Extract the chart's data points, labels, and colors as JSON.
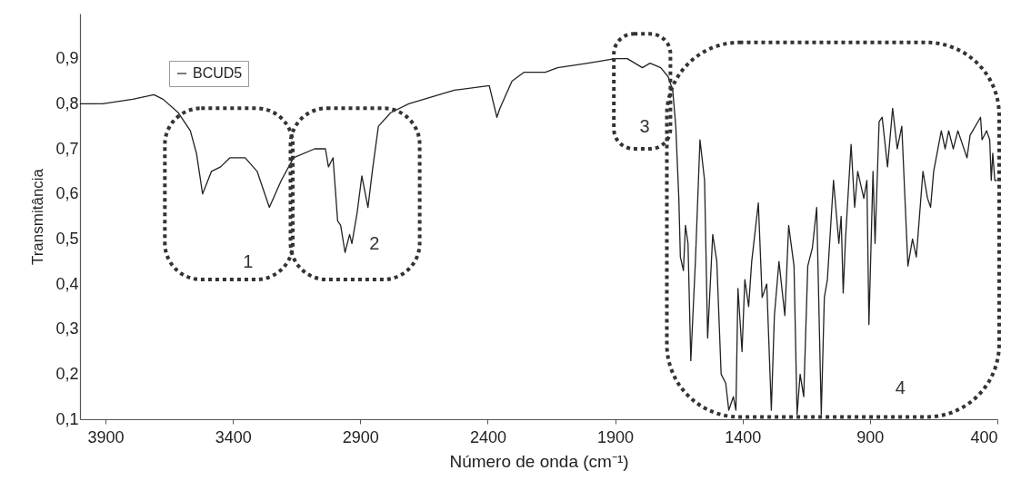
{
  "chart_data": {
    "type": "line",
    "xlabel": "Número de onda (cm⁻¹)",
    "ylabel": "Transmitância",
    "legend": "top left",
    "xlim": [
      4000,
      400
    ],
    "xticks": [
      3900,
      3400,
      2900,
      2400,
      1900,
      1400,
      900,
      400
    ],
    "ylim": [
      0.1,
      1.0
    ],
    "yticks": [
      {
        "value": 0.1,
        "label": "0,1"
      },
      {
        "value": 0.2,
        "label": "0,2"
      },
      {
        "value": 0.3,
        "label": "0,3"
      },
      {
        "value": 0.4,
        "label": "0,4"
      },
      {
        "value": 0.5,
        "label": "0,5"
      },
      {
        "value": 0.6,
        "label": "0,6"
      },
      {
        "value": 0.7,
        "label": "0,7"
      },
      {
        "value": 0.8,
        "label": "0,8"
      },
      {
        "value": 0.9,
        "label": "0,9"
      }
    ],
    "grid": false,
    "marker": "none",
    "line_style": "solid",
    "series": [
      {
        "name": "BCUD5",
        "color": "#222222",
        "x": [
          4000,
          3912,
          3793,
          3710,
          3674,
          3614,
          3567,
          3543,
          3519,
          3484,
          3448,
          3412,
          3352,
          3305,
          3257,
          3210,
          3162,
          3079,
          3037,
          3025,
          3007,
          2989,
          2977,
          2960,
          2942,
          2933,
          2912,
          2894,
          2870,
          2853,
          2829,
          2781,
          2710,
          2531,
          2394,
          2364,
          2352,
          2305,
          2257,
          2174,
          2126,
          2007,
          1900,
          1852,
          1793,
          1763,
          1721,
          1692,
          1674,
          1662,
          1650,
          1644,
          1632,
          1624,
          1614,
          1603,
          1585,
          1567,
          1549,
          1537,
          1517,
          1501,
          1484,
          1466,
          1454,
          1436,
          1426,
          1418,
          1402,
          1391,
          1376,
          1364,
          1338,
          1323,
          1305,
          1287,
          1275,
          1257,
          1234,
          1219,
          1198,
          1186,
          1174,
          1160,
          1144,
          1126,
          1109,
          1091,
          1079,
          1067,
          1043,
          1022,
          1013,
          1005,
          996,
          974,
          960,
          948,
          924,
          912,
          904,
          888,
          880,
          864,
          852,
          831,
          811,
          793,
          775,
          751,
          733,
          718,
          692,
          674,
          662,
          650,
          620,
          605,
          591,
          573,
          555,
          519,
          507,
          466,
          460,
          442,
          430,
          424,
          418,
          410,
          402
        ],
        "values": [
          0.8,
          0.8,
          0.81,
          0.82,
          0.81,
          0.78,
          0.74,
          0.69,
          0.6,
          0.65,
          0.66,
          0.68,
          0.68,
          0.65,
          0.57,
          0.63,
          0.68,
          0.7,
          0.7,
          0.66,
          0.68,
          0.54,
          0.53,
          0.47,
          0.51,
          0.49,
          0.56,
          0.64,
          0.57,
          0.65,
          0.75,
          0.78,
          0.8,
          0.83,
          0.84,
          0.77,
          0.79,
          0.85,
          0.87,
          0.87,
          0.88,
          0.89,
          0.9,
          0.9,
          0.88,
          0.89,
          0.88,
          0.86,
          0.83,
          0.75,
          0.59,
          0.46,
          0.43,
          0.53,
          0.49,
          0.23,
          0.45,
          0.72,
          0.63,
          0.28,
          0.51,
          0.45,
          0.2,
          0.18,
          0.12,
          0.15,
          0.12,
          0.39,
          0.25,
          0.41,
          0.35,
          0.45,
          0.58,
          0.37,
          0.4,
          0.12,
          0.33,
          0.45,
          0.33,
          0.53,
          0.44,
          0.11,
          0.2,
          0.15,
          0.44,
          0.48,
          0.57,
          0.11,
          0.37,
          0.41,
          0.63,
          0.49,
          0.55,
          0.38,
          0.5,
          0.71,
          0.57,
          0.65,
          0.59,
          0.63,
          0.31,
          0.65,
          0.49,
          0.76,
          0.77,
          0.66,
          0.79,
          0.7,
          0.75,
          0.44,
          0.5,
          0.46,
          0.65,
          0.59,
          0.57,
          0.65,
          0.74,
          0.7,
          0.74,
          0.7,
          0.74,
          0.68,
          0.73,
          0.77,
          0.72,
          0.74,
          0.72,
          0.63,
          0.69,
          0.63,
          0.63
        ]
      }
    ],
    "annotations": [
      "1",
      "2",
      "3",
      "4"
    ]
  }
}
